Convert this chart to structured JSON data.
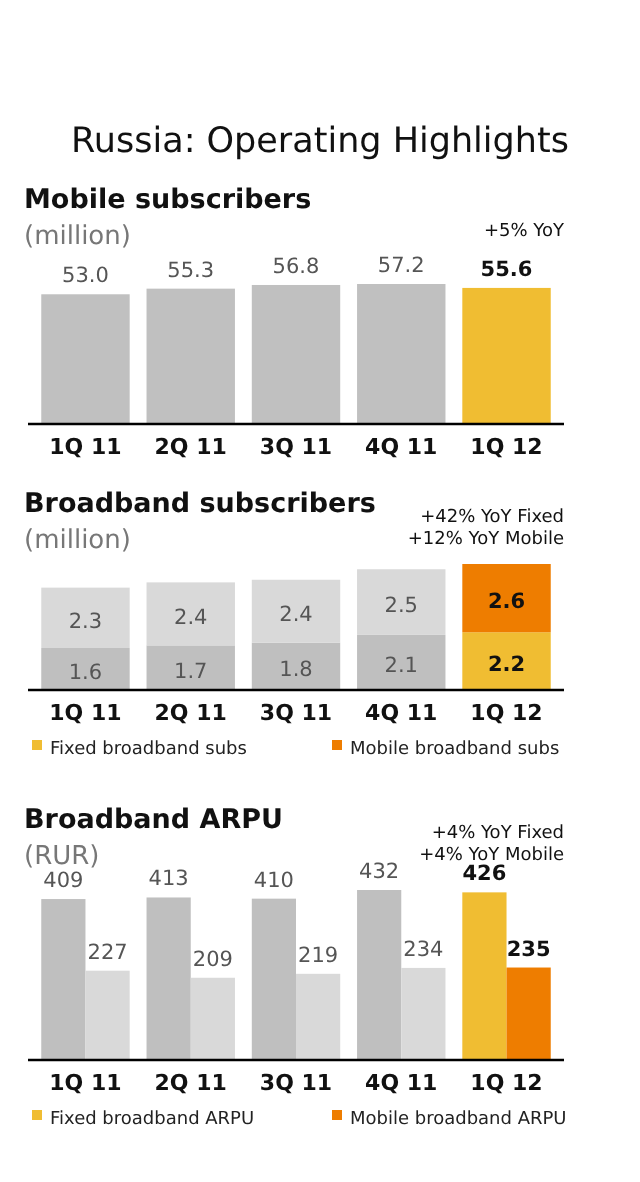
{
  "chart_data": [
    {
      "type": "bar",
      "title": "Mobile subscribers",
      "subtitle": "(million)",
      "annotations": [
        "Russia: Operating Highlights",
        "+5% YoY"
      ],
      "categories": [
        "1Q 11",
        "2Q 11",
        "3Q 11",
        "4Q 11",
        "1Q 12"
      ],
      "values": [
        53.0,
        55.3,
        56.8,
        57.2,
        55.6
      ],
      "colors": [
        "#c0c0c0",
        "#c0c0c0",
        "#c0c0c0",
        "#c0c0c0",
        "#f0bd32"
      ],
      "value_labels": [
        "53.0",
        "55.3",
        "56.8",
        "57.2",
        "55.6"
      ],
      "tick_labels": "x",
      "legend": false
    },
    {
      "type": "bar",
      "title": "Broadband subscribers",
      "subtitle": "(million)",
      "annotations": [
        "+42% YoY Fixed",
        "+12% YoY Mobile"
      ],
      "categories": [
        "1Q 11",
        "2Q 11",
        "3Q 11",
        "4Q 11",
        "1Q 12"
      ],
      "stacked": true,
      "data_labels": true,
      "series": [
        {
          "name": "Fixed broadband subs",
          "color": "#f0bd32",
          "colors": [
            "#bfbfbf",
            "#bfbfbf",
            "#bfbfbf",
            "#bfbfbf",
            "#f0bd32"
          ],
          "values": [
            1.6,
            1.7,
            1.8,
            2.1,
            2.2
          ]
        },
        {
          "name": "Mobile broadband subs",
          "color": "#ee7d00",
          "colors": [
            "#d9d9d9",
            "#d9d9d9",
            "#d9d9d9",
            "#d9d9d9",
            "#ee7d00"
          ],
          "values": [
            2.3,
            2.4,
            2.4,
            2.5,
            2.6
          ]
        }
      ],
      "tick_labels": "x",
      "legend": "bottom"
    },
    {
      "type": "bar",
      "title": "Broadband ARPU",
      "subtitle": "(RUR)",
      "annotations": [
        "+4% YoY Fixed",
        "+4% YoY Mobile"
      ],
      "categories": [
        "1Q 11",
        "2Q 11",
        "3Q 11",
        "4Q 11",
        "1Q 12"
      ],
      "data_labels": true,
      "series": [
        {
          "name": "Fixed broadband ARPU",
          "color": "#f0bd32",
          "colors": [
            "#bfbfbf",
            "#bfbfbf",
            "#bfbfbf",
            "#bfbfbf",
            "#f0bd32"
          ],
          "values": [
            409,
            413,
            410,
            432,
            426
          ]
        },
        {
          "name": "Mobile broadband ARPU",
          "color": "#ee7d00",
          "colors": [
            "#d9d9d9",
            "#d9d9d9",
            "#d9d9d9",
            "#d9d9d9",
            "#ee7d00"
          ],
          "values": [
            227,
            209,
            219,
            234,
            235
          ]
        }
      ],
      "tick_labels": "x",
      "legend": "bottom"
    }
  ]
}
